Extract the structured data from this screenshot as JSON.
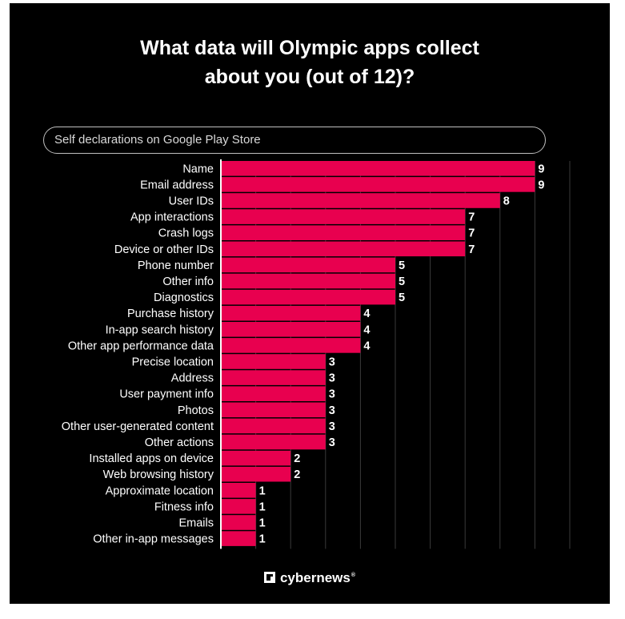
{
  "title_lines": [
    "What data will Olympic apps collect",
    "about you (out of 12)?"
  ],
  "subtitle": "Self declarations on Google Play Store",
  "brand": {
    "name": "cybernews",
    "mark": "®",
    "logo_icon": "cybernews-logo-icon"
  },
  "colors": {
    "background": "#000000",
    "bar": "#e8004f",
    "text": "#ffffff",
    "grid": "#3a3a3a"
  },
  "chart_data": {
    "type": "bar",
    "orientation": "horizontal",
    "title": "What data will Olympic apps collect about you (out of 12)?",
    "subtitle": "Self declarations on Google Play Store",
    "xlim": [
      0,
      10
    ],
    "grid": true,
    "categories": [
      "Name",
      "Email address",
      "User IDs",
      "App interactions",
      "Crash logs",
      "Device or other IDs",
      "Phone number",
      "Other info",
      "Diagnostics",
      "Purchase history",
      "In-app search history",
      "Other app performance data",
      "Precise location",
      "Address",
      "User payment info",
      "Photos",
      "Other user-generated content",
      "Other actions",
      "Installed apps on device",
      "Web browsing history",
      "Approximate location",
      "Fitness info",
      "Emails",
      "Other in-app messages"
    ],
    "values": [
      9,
      9,
      8,
      7,
      7,
      7,
      5,
      5,
      5,
      4,
      4,
      4,
      3,
      3,
      3,
      3,
      3,
      3,
      2,
      2,
      1,
      1,
      1,
      1
    ]
  }
}
